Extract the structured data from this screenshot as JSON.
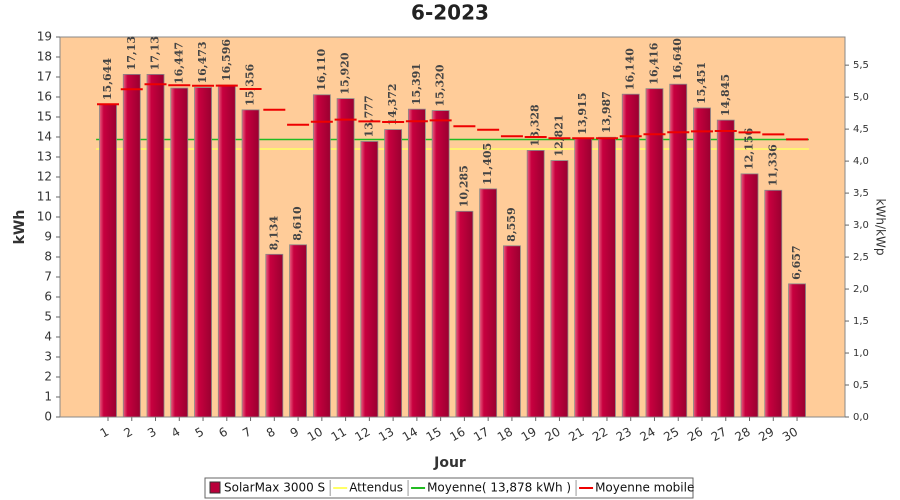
{
  "chart_data": {
    "type": "bar",
    "title": "6-2023",
    "xlabel": "Jour",
    "ylabel": "kWh",
    "y2label": "kWh/kWp",
    "categories": [
      "1",
      "2",
      "3",
      "4",
      "5",
      "6",
      "7",
      "8",
      "9",
      "10",
      "11",
      "12",
      "13",
      "14",
      "15",
      "16",
      "17",
      "18",
      "19",
      "20",
      "21",
      "22",
      "23",
      "24",
      "25",
      "26",
      "27",
      "28",
      "29",
      "30"
    ],
    "series": [
      {
        "name": "SolarMax 3000 S",
        "type": "bar",
        "color": "#b8003a",
        "values": [
          15.644,
          17.13,
          17.13,
          16.447,
          16.473,
          16.596,
          15.356,
          8.134,
          8.61,
          16.11,
          15.92,
          13.777,
          14.372,
          15.391,
          15.32,
          10.285,
          11.405,
          8.559,
          13.328,
          12.821,
          13.915,
          13.987,
          16.14,
          16.416,
          16.64,
          15.451,
          14.845,
          12.156,
          11.336,
          6.657
        ],
        "value_labels": [
          "15,644",
          "17,13",
          "17,13",
          "16,447",
          "16,473",
          "16,596",
          "15,356",
          "8,134",
          "8,610",
          "16,110",
          "15,920",
          "13,777",
          "14,372",
          "15,391",
          "15,320",
          "10,285",
          "11,405",
          "8,559",
          "13,328",
          "12,821",
          "13,915",
          "13,987",
          "16,140",
          "16,416",
          "16,640",
          "15,451",
          "14,845",
          "12,156",
          "11,336",
          "6,657"
        ]
      },
      {
        "name": "Attendus",
        "type": "line",
        "color": "#ffff66",
        "values": [
          13.4,
          13.4,
          13.4,
          13.4,
          13.4,
          13.4,
          13.4,
          13.4,
          13.4,
          13.4,
          13.4,
          13.4,
          13.4,
          13.4,
          13.4,
          13.4,
          13.4,
          13.4,
          13.4,
          13.4,
          13.4,
          13.4,
          13.4,
          13.4,
          13.4,
          13.4,
          13.4,
          13.4,
          13.4,
          13.4
        ]
      },
      {
        "name": "Moyenne( 13,878 kWh )",
        "type": "line",
        "color": "#22bb22",
        "values": [
          13.878,
          13.878,
          13.878,
          13.878,
          13.878,
          13.878,
          13.878,
          13.878,
          13.878,
          13.878,
          13.878,
          13.878,
          13.878,
          13.878,
          13.878,
          13.878,
          13.878,
          13.878,
          13.878,
          13.878,
          13.878,
          13.878,
          13.878,
          13.878,
          13.878,
          13.878,
          13.878,
          13.878,
          13.878,
          13.878
        ]
      },
      {
        "name": "Moyenne mobile",
        "type": "step",
        "color": "#ee0000",
        "values": [
          15.64,
          16.39,
          16.64,
          16.59,
          16.56,
          16.57,
          16.4,
          15.36,
          14.61,
          14.76,
          14.87,
          14.78,
          14.75,
          14.79,
          14.83,
          14.54,
          14.36,
          14.04,
          14.0,
          13.94,
          13.94,
          13.94,
          14.04,
          14.14,
          14.24,
          14.28,
          14.3,
          14.23,
          14.13,
          13.88
        ]
      }
    ],
    "ylim": [
      0,
      19
    ],
    "yticks": [
      0,
      1,
      2,
      3,
      4,
      5,
      6,
      7,
      8,
      9,
      10,
      11,
      12,
      13,
      14,
      15,
      16,
      17,
      18,
      19
    ],
    "y2lim": [
      0,
      5.94
    ],
    "y2ticks": [
      {
        "value": 0,
        "label": "0,0"
      },
      {
        "value": 0.5,
        "label": "0,5"
      },
      {
        "value": 1,
        "label": "1,0"
      },
      {
        "value": 1.5,
        "label": "1,5"
      },
      {
        "value": 2,
        "label": "2,0"
      },
      {
        "value": 2.5,
        "label": "2,5"
      },
      {
        "value": 3,
        "label": "3,0"
      },
      {
        "value": 3.5,
        "label": "3,5"
      },
      {
        "value": 4,
        "label": "4,0"
      },
      {
        "value": 4.5,
        "label": "4,5"
      },
      {
        "value": 5,
        "label": "5,0"
      },
      {
        "value": 5.5,
        "label": "5,5"
      }
    ],
    "grid": false,
    "legend": "bottom"
  }
}
